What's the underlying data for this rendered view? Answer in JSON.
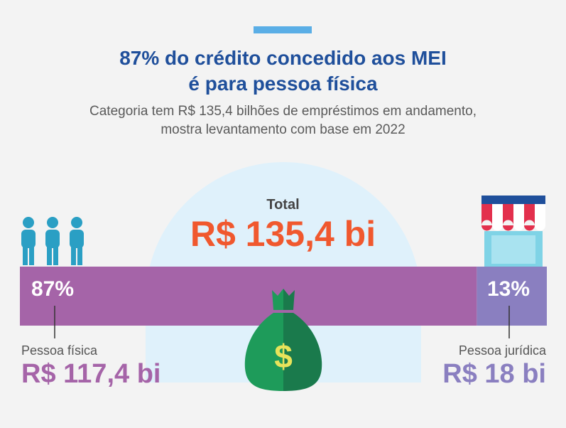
{
  "header": {
    "title_line1": "87% do crédito concedido aos MEI",
    "title_line2": "é para pessoa física",
    "subtitle_line1": "Categoria tem R$ 135,4 bilhões de empréstimos em andamento,",
    "subtitle_line2": "mostra levantamento com base em 2022"
  },
  "total": {
    "label": "Total",
    "value": "R$ 135,4 bi"
  },
  "chart_data": {
    "type": "bar",
    "orientation": "horizontal-stacked",
    "categories": [
      "Pessoa física",
      "Pessoa jurídica"
    ],
    "values": [
      117.4,
      18
    ],
    "percent": [
      87,
      13
    ],
    "percent_labels": [
      "87%",
      "13%"
    ],
    "value_labels": [
      "R$ 117,4 bi",
      "R$ 18 bi"
    ],
    "total": 135.4,
    "colors": [
      "#a564a8",
      "#8a7fc0"
    ]
  },
  "colors": {
    "title": "#1f4f9b",
    "total": "#f0582e",
    "accent": "#5aaee6"
  },
  "icons": [
    "people-icon",
    "storefront-icon",
    "money-bag-icon"
  ]
}
